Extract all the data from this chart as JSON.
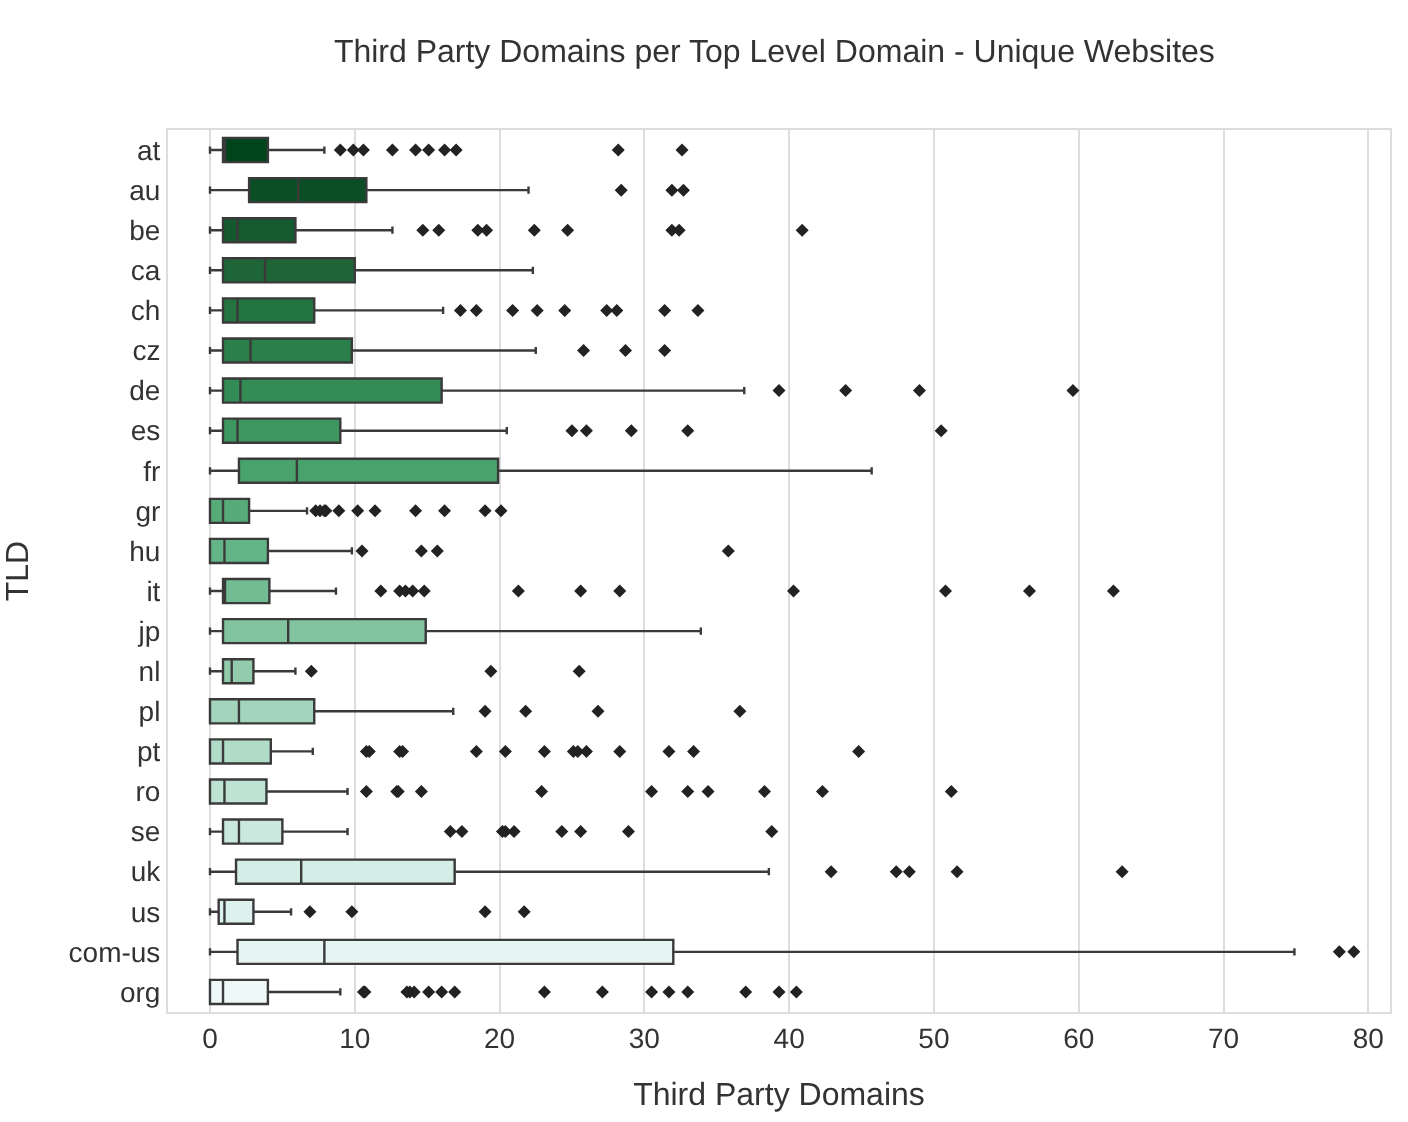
{
  "chart_data": {
    "type": "box",
    "orientation": "horizontal",
    "title": "Third Party Domains per Top Level Domain - Unique Websites",
    "xlabel": "Third Party Domains",
    "ylabel": "TLD",
    "categories": [
      "at",
      "au",
      "be",
      "ca",
      "ch",
      "cz",
      "de",
      "es",
      "fr",
      "gr",
      "hu",
      "it",
      "jp",
      "nl",
      "pl",
      "pt",
      "ro",
      "se",
      "uk",
      "us",
      "com-us",
      "org"
    ],
    "colors": [
      "#00441b",
      "#0b4d25",
      "#15592f",
      "#1e6638",
      "#247441",
      "#2b7f4b",
      "#338b55",
      "#3c9860",
      "#48a26c",
      "#56ab79",
      "#63b486",
      "#72bc93",
      "#82c4a0",
      "#92ccad",
      "#a2d5bb",
      "#b0dcc8",
      "#bee3d3",
      "#cae8dd",
      "#d4ede6",
      "#ddf1ee",
      "#e6f5f3",
      "#eef8f8"
    ],
    "boxes": [
      {
        "low": 0,
        "q1": 0.9,
        "median": 1.0,
        "q3": 4.0,
        "high": 7.9,
        "outliers": [
          9.0,
          9.9,
          10.6,
          12.6,
          14.2,
          15.1,
          16.2,
          17.0,
          28.2,
          32.6
        ]
      },
      {
        "low": 0,
        "q1": 2.7,
        "median": 6.1,
        "q3": 10.8,
        "high": 22.0,
        "outliers": [
          28.4,
          31.9,
          32.7
        ]
      },
      {
        "low": 0,
        "q1": 0.9,
        "median": 1.9,
        "q3": 5.9,
        "high": 12.6,
        "outliers": [
          14.7,
          15.8,
          18.5,
          19.1,
          22.4,
          24.7,
          31.9,
          32.4,
          40.9
        ]
      },
      {
        "low": 0,
        "q1": 0.9,
        "median": 3.8,
        "q3": 10.0,
        "high": 22.3
      },
      {
        "low": 0,
        "q1": 0.9,
        "median": 1.9,
        "q3": 7.2,
        "high": 16.1,
        "outliers": [
          17.3,
          18.4,
          20.9,
          22.6,
          24.5,
          27.4,
          28.1,
          31.4,
          33.7
        ]
      },
      {
        "low": 0,
        "q1": 0.9,
        "median": 2.8,
        "q3": 9.8,
        "high": 22.5,
        "outliers": [
          25.8,
          28.7,
          31.4
        ]
      },
      {
        "low": 0,
        "q1": 0.9,
        "median": 2.1,
        "q3": 16.0,
        "high": 36.9,
        "outliers": [
          39.3,
          43.9,
          49.0,
          59.6
        ]
      },
      {
        "low": 0,
        "q1": 0.9,
        "median": 1.9,
        "q3": 9.0,
        "high": 20.5,
        "outliers": [
          25.0,
          26.0,
          29.1,
          33.0,
          50.5
        ]
      },
      {
        "low": 0,
        "q1": 2.0,
        "median": 6.0,
        "q3": 19.9,
        "high": 45.7
      },
      {
        "low": 0,
        "q1": 0,
        "median": 0.9,
        "q3": 2.7,
        "high": 6.7,
        "outliers": [
          7.3,
          7.6,
          7.9,
          8.0,
          8.9,
          10.2,
          11.4,
          14.2,
          16.2,
          19.0,
          20.1
        ]
      },
      {
        "low": 0,
        "q1": 0,
        "median": 1.0,
        "q3": 4.0,
        "high": 9.8,
        "outliers": [
          10.5,
          14.6,
          15.7,
          35.8
        ]
      },
      {
        "low": 0,
        "q1": 0.9,
        "median": 1.0,
        "q3": 4.1,
        "high": 8.7,
        "outliers": [
          11.8,
          13.1,
          13.5,
          14.0,
          14.8,
          21.3,
          25.6,
          28.3,
          40.3,
          50.8,
          56.6,
          62.4
        ]
      },
      {
        "low": 0,
        "q1": 0.9,
        "median": 5.4,
        "q3": 14.9,
        "high": 33.9
      },
      {
        "low": 0,
        "q1": 0.9,
        "median": 1.5,
        "q3": 3.0,
        "high": 5.9,
        "outliers": [
          7.0,
          19.4,
          25.5
        ]
      },
      {
        "low": 0,
        "q1": 0,
        "median": 2.0,
        "q3": 7.2,
        "high": 16.8,
        "outliers": [
          19.0,
          21.8,
          26.8,
          36.6
        ]
      },
      {
        "low": 0,
        "q1": 0,
        "median": 0.9,
        "q3": 4.2,
        "high": 7.1,
        "outliers": [
          10.8,
          11.0,
          13.1,
          13.3,
          18.4,
          20.4,
          23.1,
          25.1,
          25.4,
          26.0,
          28.3,
          31.7,
          33.4,
          44.8
        ]
      },
      {
        "low": 0,
        "q1": 0,
        "median": 1.0,
        "q3": 3.9,
        "high": 9.5,
        "outliers": [
          10.8,
          12.9,
          13.0,
          14.6,
          22.9,
          30.5,
          33.0,
          34.4,
          38.3,
          42.3,
          51.2
        ]
      },
      {
        "low": 0,
        "q1": 0.9,
        "median": 2.0,
        "q3": 5.0,
        "high": 9.5,
        "outliers": [
          16.6,
          17.4,
          20.2,
          20.4,
          21.0,
          24.3,
          25.6,
          28.9,
          38.8
        ]
      },
      {
        "low": 0,
        "q1": 1.8,
        "median": 6.3,
        "q3": 16.9,
        "high": 38.6,
        "outliers": [
          42.9,
          47.4,
          48.3,
          51.6,
          63.0
        ]
      },
      {
        "low": 0,
        "q1": 0.6,
        "median": 1.0,
        "q3": 3.0,
        "high": 5.6,
        "outliers": [
          6.9,
          9.8,
          19.0,
          21.7
        ]
      },
      {
        "low": 0,
        "q1": 1.9,
        "median": 7.9,
        "q3": 32.0,
        "high": 74.9,
        "outliers": [
          78.0,
          79.0
        ]
      },
      {
        "low": 0,
        "q1": 0,
        "median": 0.9,
        "q3": 4.0,
        "high": 9.0,
        "outliers": [
          10.6,
          10.7,
          13.6,
          13.8,
          14.1,
          15.1,
          16.0,
          16.9,
          23.1,
          27.1,
          30.5,
          31.7,
          33.0,
          37.0,
          39.3,
          40.5
        ]
      }
    ],
    "xlim": [
      -2.9,
      81.5
    ],
    "xticks": [
      0,
      10,
      20,
      30,
      40,
      50,
      60,
      70,
      80
    ],
    "grid": "x",
    "marker": "diamond"
  }
}
